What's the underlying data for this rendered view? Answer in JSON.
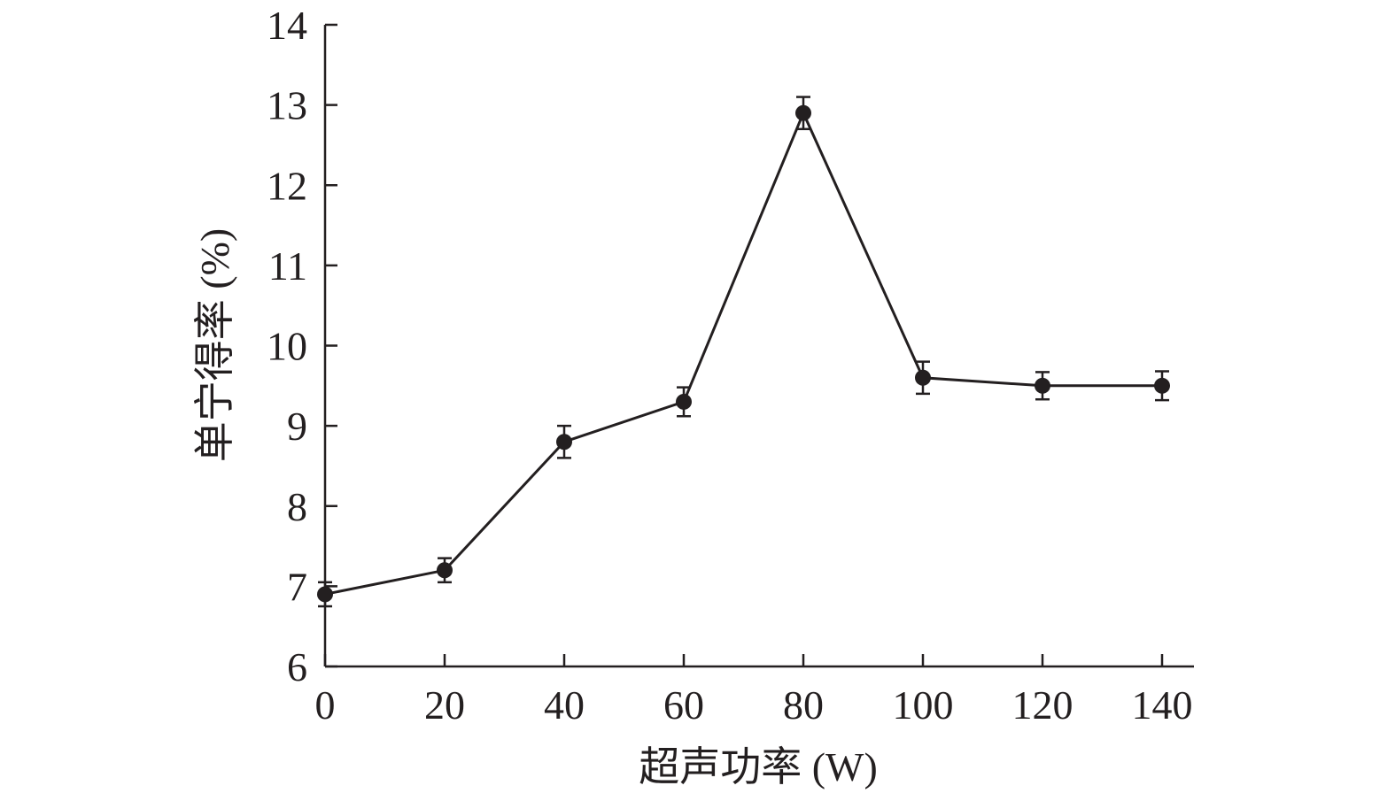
{
  "chart_data": {
    "type": "line",
    "xlabel": "超声功率 (W)",
    "ylabel": "单宁得率 (%)",
    "xlim": [
      0,
      145
    ],
    "ylim": [
      6,
      14
    ],
    "x_ticks": [
      0,
      20,
      40,
      60,
      80,
      100,
      120,
      140
    ],
    "y_ticks": [
      6,
      7,
      8,
      9,
      10,
      11,
      12,
      13,
      14
    ],
    "grid": false,
    "series": [
      {
        "x": [
          0,
          20,
          40,
          60,
          80,
          100,
          120,
          140
        ],
        "values": [
          6.9,
          7.2,
          8.8,
          9.3,
          12.9,
          9.6,
          9.5,
          9.5
        ],
        "error": [
          0.15,
          0.15,
          0.2,
          0.18,
          0.2,
          0.2,
          0.17,
          0.18
        ],
        "color": "#231f20",
        "marker": "circle"
      }
    ]
  }
}
